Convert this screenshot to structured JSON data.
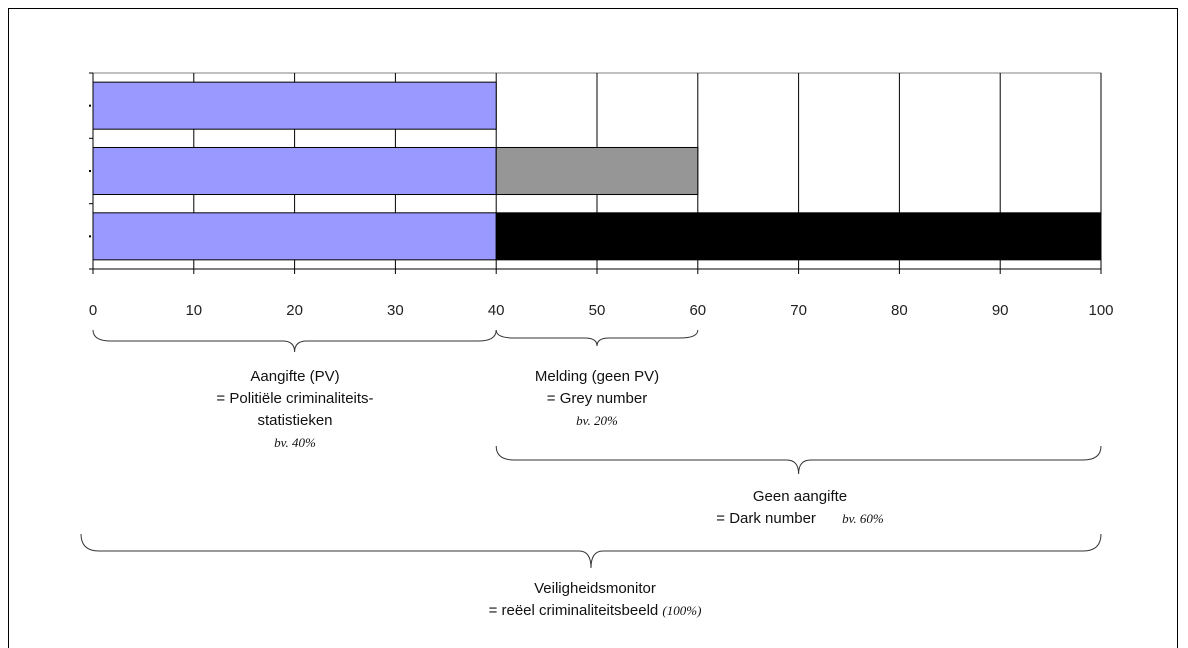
{
  "chart_data": {
    "type": "bar",
    "orientation": "horizontal",
    "stacked": true,
    "categories": [
      "",
      "",
      ""
    ],
    "series": [
      {
        "values": [
          40,
          40,
          40
        ],
        "color": "#9999ff"
      },
      {
        "values": [
          0,
          20,
          0
        ],
        "color": "#969696"
      },
      {
        "values": [
          0,
          0,
          60
        ],
        "color": "#000000"
      }
    ],
    "xlim": [
      0,
      100
    ],
    "xticks": [
      "0",
      "10",
      "20",
      "30",
      "40",
      "50",
      "60",
      "70",
      "80",
      "90",
      "100"
    ],
    "grid": true,
    "xlabel": "",
    "ylabel": ""
  },
  "annotations": {
    "aangifte": {
      "line1": "Aangifte (PV)",
      "line2": "= Politiële criminaliteits-",
      "line3": "statistieken",
      "note": "bv. 40%"
    },
    "melding": {
      "line1": "Melding (geen PV)",
      "line2": "= Grey number",
      "note": "bv. 20%"
    },
    "geen_aangifte": {
      "line1": "Geen aangifte",
      "line2": "= Dark number",
      "note": "bv. 60%"
    },
    "veiligheidsmonitor": {
      "line1": "Veiligheidsmonitor",
      "line2": "= reëel criminaliteitsbeeld",
      "note": "(100%)"
    }
  }
}
